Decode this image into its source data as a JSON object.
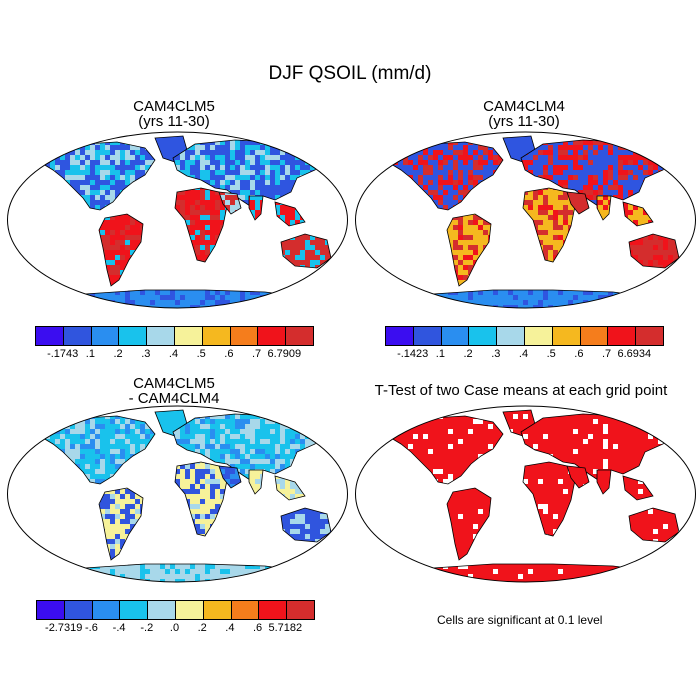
{
  "figure_title": "DJF QSOIL (mm/d)",
  "panels": [
    {
      "title1": "CAM4CLM5",
      "title2": "(yrs 11-30)"
    },
    {
      "title1": "CAM4CLM4",
      "title2": "(yrs 11-30)"
    },
    {
      "title1": "CAM4CLM5",
      "title2": "- CAM4CLM4"
    },
    {
      "title1": "T-Test of two Case means at each grid point"
    }
  ],
  "colorbars": [
    {
      "colors": [
        "#3b0df0",
        "#3055de",
        "#2a8ef0",
        "#19c2ec",
        "#a8d8ea",
        "#f6f29a",
        "#f5b81f",
        "#f57d1c",
        "#f0131b",
        "#d42d2d"
      ],
      "labels": [
        "-.1743",
        ".1",
        ".2",
        ".3",
        ".4",
        ".5",
        ".6",
        ".7",
        "6.7909"
      ]
    },
    {
      "colors": [
        "#3b0df0",
        "#3055de",
        "#2a8ef0",
        "#19c2ec",
        "#a8d8ea",
        "#f6f29a",
        "#f5b81f",
        "#f57d1c",
        "#f0131b",
        "#d42d2d"
      ],
      "labels": [
        "-.1423",
        ".1",
        ".2",
        ".3",
        ".4",
        ".5",
        ".6",
        ".7",
        "6.6934"
      ]
    },
    {
      "colors": [
        "#3b0df0",
        "#3055de",
        "#2a8ef0",
        "#19c2ec",
        "#a8d8ea",
        "#f6f29a",
        "#f5b81f",
        "#f57d1c",
        "#f0131b",
        "#d42d2d"
      ],
      "labels": [
        "-2.7319",
        "-.6",
        "-.4",
        "-.2",
        ".0",
        ".2",
        ".4",
        ".6",
        "5.7182"
      ]
    }
  ],
  "significance_note": "Cells are significant at 0.1 level",
  "map_colors": {
    "ocean": "#ffffff",
    "clm5": {
      "north": "#2f55e0",
      "tropics": "#f0131b",
      "mid": "#19c2ec",
      "dry": "#a8d8ea",
      "hot": "#d42d2d",
      "ant": "#2a8ef0"
    },
    "clm4": {
      "north": "#2f55e0",
      "tropics": "#f5b81f",
      "mid": "#f0131b",
      "dry": "#d42d2d",
      "hot": "#d42d2d",
      "ant": "#2a8ef0"
    },
    "diff": {
      "north": "#19c2ec",
      "tropics": "#f6f29a",
      "mid": "#a8d8ea",
      "dry": "#2a8ef0",
      "hot": "#3055de",
      "ant": "#a8d8ea"
    },
    "ttest": {
      "north": "#f0131b",
      "tropics": "#f0131b",
      "mid": "#f0131b",
      "dry": "#f0131b",
      "hot": "#f0131b",
      "ant": "#f0131b"
    }
  }
}
